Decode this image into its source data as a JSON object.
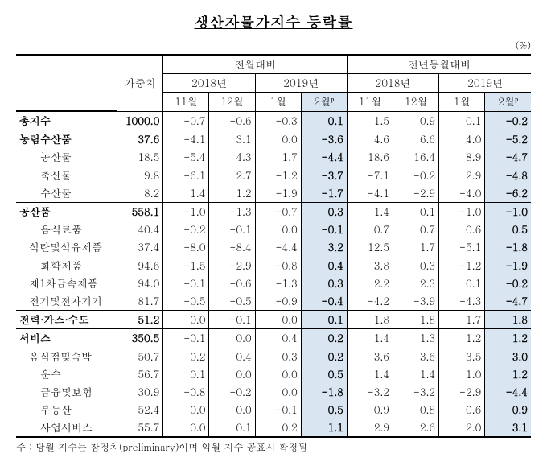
{
  "title": "생산자물가지수 등락률",
  "unit": "(%)",
  "header": {
    "weight": "가중치",
    "mom": "전월대비",
    "yoy": "전년동월대비",
    "y2018": "2018년",
    "y2019": "2019년",
    "m11": "11월",
    "m12": "12월",
    "m1": "1월",
    "m2": "2월ᴾ"
  },
  "rows": [
    {
      "label": "총지수",
      "bold": true,
      "weight": "1000.0",
      "mom": [
        "-0.7",
        "-0.6",
        "-0.3",
        "0.1"
      ],
      "yoy": [
        "1.5",
        "0.9",
        "0.1",
        "-0.2"
      ],
      "topline": true
    },
    {
      "label": "농림수산품",
      "bold": true,
      "weight": "37.6",
      "mom": [
        "-4.1",
        "3.1",
        "0.0",
        "-3.6"
      ],
      "yoy": [
        "4.6",
        "6.6",
        "4.0",
        "-5.2"
      ],
      "topline": true
    },
    {
      "label": "농산물",
      "indent": true,
      "weight": "18.5",
      "mom": [
        "-5.4",
        "4.3",
        "1.7",
        "-4.4"
      ],
      "yoy": [
        "18.6",
        "16.4",
        "8.9",
        "-4.7"
      ]
    },
    {
      "label": "축산물",
      "indent": true,
      "weight": "9.8",
      "mom": [
        "-6.1",
        "2.7",
        "-1.2",
        "-3.7"
      ],
      "yoy": [
        "-7.1",
        "-0.2",
        "2.9",
        "-4.8"
      ]
    },
    {
      "label": "수산물",
      "indent": true,
      "weight": "8.2",
      "mom": [
        "1.4",
        "1.2",
        "-1.9",
        "-1.7"
      ],
      "yoy": [
        "-4.1",
        "-2.9",
        "-4.0",
        "-6.2"
      ]
    },
    {
      "label": "공산품",
      "bold": true,
      "weight": "558.1",
      "mom": [
        "-1.0",
        "-1.3",
        "-0.7",
        "0.3"
      ],
      "yoy": [
        "1.4",
        "0.1",
        "-1.0",
        "-1.0"
      ],
      "topline": true
    },
    {
      "label": "음식료품",
      "indent": true,
      "weight": "40.4",
      "mom": [
        "-0.2",
        "-0.1",
        "0.0",
        "-0.1"
      ],
      "yoy": [
        "0.7",
        "0.7",
        "0.6",
        "0.5"
      ]
    },
    {
      "label": "석탄및석유제품",
      "indent": true,
      "weight": "37.4",
      "nospace": true,
      "mom": [
        "-8.0",
        "-8.4",
        "-4.4",
        "3.2"
      ],
      "yoy": [
        "12.5",
        "1.7",
        "-5.1",
        "-1.8"
      ]
    },
    {
      "label": "화학제품",
      "indent": true,
      "weight": "94.6",
      "mom": [
        "-1.5",
        "-2.9",
        "-0.8",
        "0.4"
      ],
      "yoy": [
        "3.8",
        "0.3",
        "-1.2",
        "-1.9"
      ]
    },
    {
      "label": "제1차금속제품",
      "indent": true,
      "weight": "94.0",
      "nospace": true,
      "mom": [
        "-0.1",
        "-0.6",
        "-1.3",
        "0.3"
      ],
      "yoy": [
        "2.2",
        "2.3",
        "0.1",
        "-0.2"
      ]
    },
    {
      "label": "전기및전자기기",
      "indent": true,
      "weight": "81.7",
      "nospace": true,
      "mom": [
        "-0.5",
        "-0.5",
        "-0.9",
        "-0.4"
      ],
      "yoy": [
        "-4.2",
        "-3.9",
        "-4.3",
        "-4.7"
      ]
    },
    {
      "label": "전력·가스·수도",
      "bold": true,
      "weight": "51.2",
      "mom": [
        "0.0",
        "-0.1",
        "0.0",
        "0.1"
      ],
      "yoy": [
        "1.8",
        "1.8",
        "1.7",
        "1.8"
      ],
      "topline": true
    },
    {
      "label": "서비스",
      "bold": true,
      "weight": "350.5",
      "mom": [
        "-0.1",
        "0.0",
        "0.4",
        "0.2"
      ],
      "yoy": [
        "1.4",
        "1.3",
        "1.2",
        "1.2"
      ],
      "topline": true
    },
    {
      "label": "음식점및숙박",
      "indent": true,
      "weight": "50.7",
      "nospace": true,
      "mom": [
        "0.2",
        "0.4",
        "0.3",
        "0.2"
      ],
      "yoy": [
        "3.6",
        "3.6",
        "3.5",
        "3.0"
      ]
    },
    {
      "label": "운수",
      "indent": true,
      "weight": "56.7",
      "mom": [
        "0.1",
        "0.0",
        "0.0",
        "0.5"
      ],
      "yoy": [
        "1.4",
        "1.4",
        "1.0",
        "1.2"
      ]
    },
    {
      "label": "금융및보험",
      "indent": true,
      "weight": "30.9",
      "mom": [
        "-0.8",
        "-0.2",
        "0.0",
        "-1.8"
      ],
      "yoy": [
        "-3.2",
        "-3.2",
        "-2.9",
        "-4.4"
      ]
    },
    {
      "label": "부동산",
      "indent": true,
      "weight": "52.4",
      "mom": [
        "0.0",
        "0.0",
        "-0.1",
        "0.5"
      ],
      "yoy": [
        "0.9",
        "0.8",
        "0.6",
        "0.9"
      ]
    },
    {
      "label": "사업서비스",
      "indent": true,
      "weight": "55.7",
      "mom": [
        "0.0",
        "0.1",
        "0.2",
        "1.1"
      ],
      "yoy": [
        "2.9",
        "2.6",
        "2.0",
        "3.1"
      ],
      "botline2": true
    }
  ],
  "footnote": "주 : 당월 지수는 잠정치(preliminary)이며 익월 지수 공표시 확정됨"
}
